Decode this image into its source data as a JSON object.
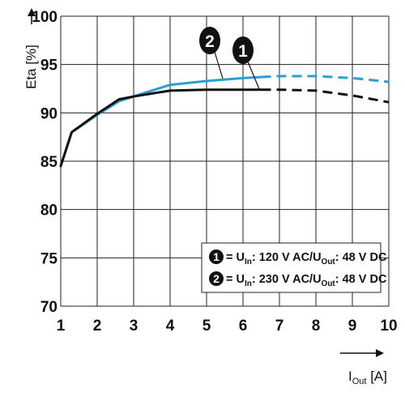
{
  "chart_data": {
    "type": "line",
    "xlabel": {
      "main": "I",
      "sub": "Out",
      "unit": " [A]"
    },
    "ylabel": "Eta [%]",
    "xlim": [
      1,
      10
    ],
    "ylim": [
      70,
      100
    ],
    "x_ticks": [
      "1",
      "2",
      "3",
      "4",
      "5",
      "6",
      "7",
      "8",
      "9",
      "10"
    ],
    "y_ticks": [
      "70",
      "75",
      "80",
      "85",
      "90",
      "95",
      "100"
    ],
    "grid": true,
    "legend_placement": "bottom-right",
    "series": [
      {
        "id": "1",
        "color": "#111111",
        "x": [
          1.0,
          1.3,
          2.0,
          2.6,
          3.0,
          4.0,
          5.0,
          6.0,
          6.5
        ],
        "y": [
          84.5,
          88.0,
          89.9,
          91.4,
          91.7,
          92.3,
          92.4,
          92.4,
          92.4
        ],
        "dashed_x": [
          6.5,
          7.0,
          8.0,
          9.0,
          10.0
        ],
        "dashed_y": [
          92.4,
          92.4,
          92.3,
          91.8,
          91.1
        ],
        "legend": [
          {
            "t": "= U",
            "sub": false
          },
          {
            "t": "In",
            "sub": true
          },
          {
            "t": ": 120 V AC/U",
            "sub": false
          },
          {
            "t": "Out",
            "sub": true
          },
          {
            "t": ": 48 V DC",
            "sub": false
          }
        ]
      },
      {
        "id": "2",
        "color": "#2a9fd6",
        "x": [
          1.0,
          1.3,
          2.0,
          2.6,
          3.0,
          4.0,
          5.0,
          6.0,
          6.5
        ],
        "y": [
          84.5,
          88.0,
          89.8,
          91.2,
          91.7,
          92.9,
          93.3,
          93.6,
          93.7
        ],
        "dashed_x": [
          6.5,
          7.0,
          8.0,
          9.0,
          10.0
        ],
        "dashed_y": [
          93.7,
          93.8,
          93.8,
          93.6,
          93.2
        ],
        "legend": [
          {
            "t": "= U",
            "sub": false
          },
          {
            "t": "In",
            "sub": true
          },
          {
            "t": ": 230 V AC/U",
            "sub": false
          },
          {
            "t": "Out",
            "sub": true
          },
          {
            "t": ": 48 V DC",
            "sub": false
          }
        ]
      }
    ]
  }
}
